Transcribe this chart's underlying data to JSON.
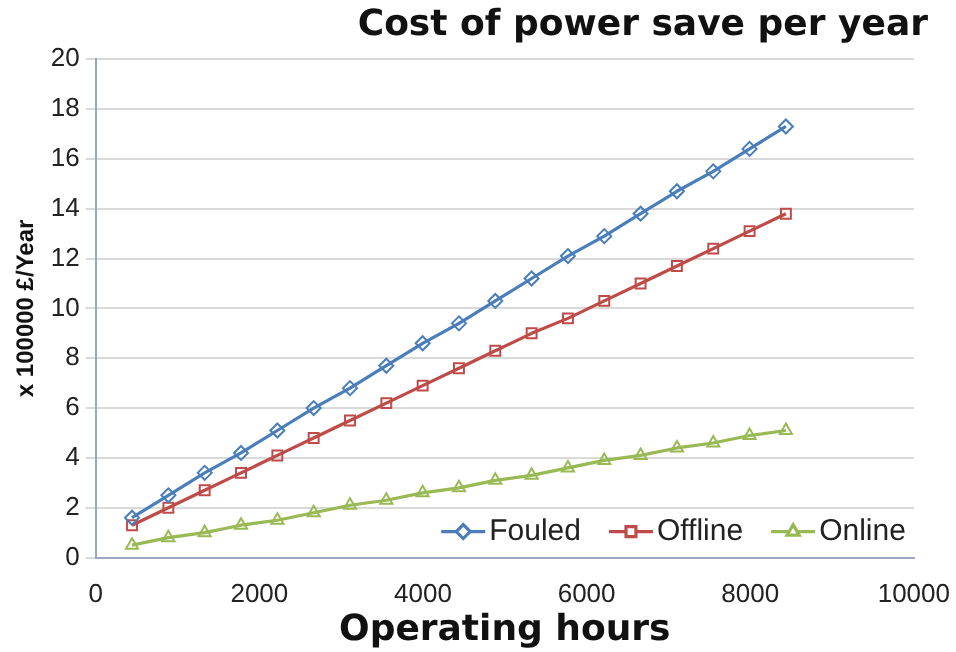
{
  "chart_data": {
    "type": "line",
    "title": "Cost of power save per year",
    "xlabel": "Operating hours",
    "ylabel": "x 100000 £/Year",
    "x": [
      444,
      888,
      1332,
      1776,
      2220,
      2664,
      3108,
      3552,
      3996,
      4440,
      4884,
      5328,
      5772,
      6216,
      6660,
      7104,
      7548,
      7992,
      8436
    ],
    "series": [
      {
        "name": "Fouled",
        "color": "#4a7ebb",
        "marker": "diamond",
        "values": [
          1.6,
          2.5,
          3.4,
          4.2,
          5.1,
          6.0,
          6.8,
          7.7,
          8.6,
          9.4,
          10.3,
          11.2,
          12.1,
          12.9,
          13.8,
          14.7,
          15.5,
          16.4,
          17.3
        ]
      },
      {
        "name": "Offline",
        "color": "#be4b48",
        "marker": "square",
        "values": [
          1.3,
          2.0,
          2.7,
          3.4,
          4.1,
          4.8,
          5.5,
          6.2,
          6.9,
          7.6,
          8.3,
          9.0,
          9.6,
          10.3,
          11.0,
          11.7,
          12.4,
          13.1,
          13.8
        ]
      },
      {
        "name": "Online",
        "color": "#98b954",
        "marker": "triangle",
        "values": [
          0.5,
          0.8,
          1.0,
          1.3,
          1.5,
          1.8,
          2.1,
          2.3,
          2.6,
          2.8,
          3.1,
          3.3,
          3.6,
          3.9,
          4.1,
          4.4,
          4.6,
          4.9,
          5.1
        ]
      }
    ],
    "xlim": [
      0,
      10000
    ],
    "xticks": [
      0,
      2000,
      4000,
      6000,
      8000,
      10000
    ],
    "ylim": [
      0,
      20
    ],
    "yticks": [
      0,
      2,
      4,
      6,
      8,
      10,
      12,
      14,
      16,
      18,
      20
    ],
    "grid": "y",
    "legend": "bottom right",
    "line_style": "solid"
  }
}
